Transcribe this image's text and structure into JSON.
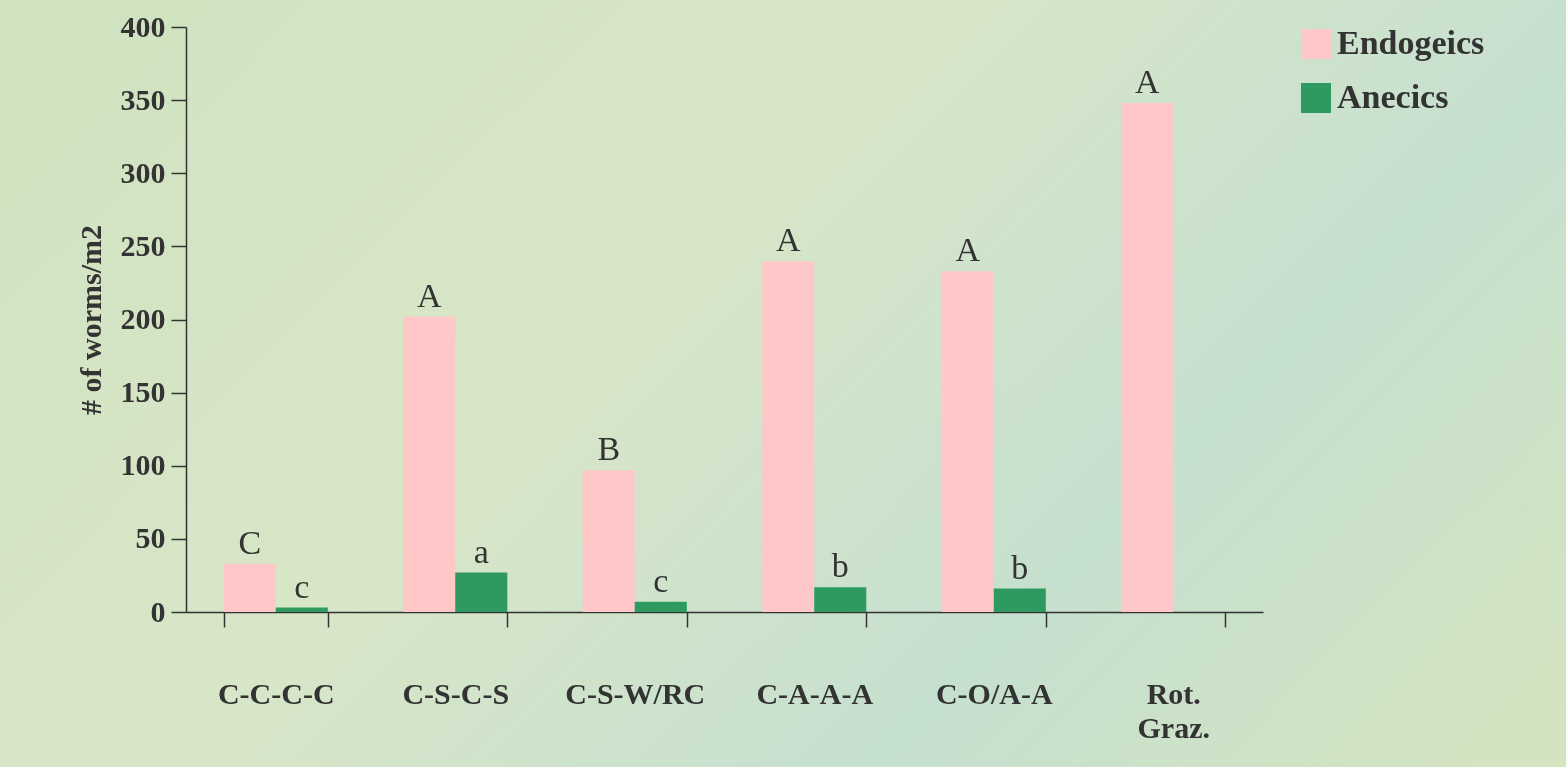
{
  "chart_data": {
    "type": "bar",
    "ylabel": "# of worms/m2",
    "categories": [
      "C-C-C-C",
      "C-S-C-S",
      "C-S-W/RC",
      "C-A-A-A",
      "C-O/A-A",
      "Rot. Graz."
    ],
    "series": [
      {
        "name": "Endogeics",
        "color": "#ffc8c8",
        "values": [
          33,
          202,
          97,
          240,
          233,
          348
        ],
        "value_labels": [
          "C",
          "A",
          "B",
          "A",
          "A",
          "A"
        ]
      },
      {
        "name": "Anecics",
        "color": "#2e9a60",
        "values": [
          3,
          27,
          7,
          17,
          16,
          null
        ],
        "value_labels": [
          "c",
          "a",
          "c",
          "b",
          "b",
          null
        ]
      }
    ],
    "ylim": [
      0,
      400
    ],
    "yticks": [
      0,
      50,
      100,
      150,
      200,
      250,
      300,
      350,
      400
    ],
    "grid": false,
    "legend": "right"
  }
}
